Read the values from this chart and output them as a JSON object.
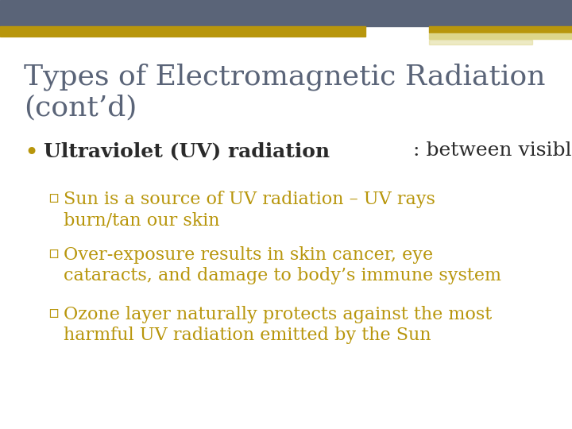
{
  "title_line1": "Types of Electromagnetic Radiation",
  "title_line2": "(cont’d)",
  "title_color": "#5a6478",
  "background_color": "#ffffff",
  "header_bar_color": "#5a6478",
  "gold_bar_color": "#b8960c",
  "light_gold_color": "#ddd68a",
  "bullet_dot_color": "#b8960c",
  "bullet_text_black": "#2a2a2a",
  "sub_bullet_color": "#b8960c",
  "bullet_main_bold": "Ultraviolet (UV) radiation",
  "bullet_main_normal": ": between visible radiation and x-rays",
  "font_family": "serif",
  "title_fontsize": 26,
  "bullet_fontsize": 18,
  "sub_bullet_fontsize": 16
}
